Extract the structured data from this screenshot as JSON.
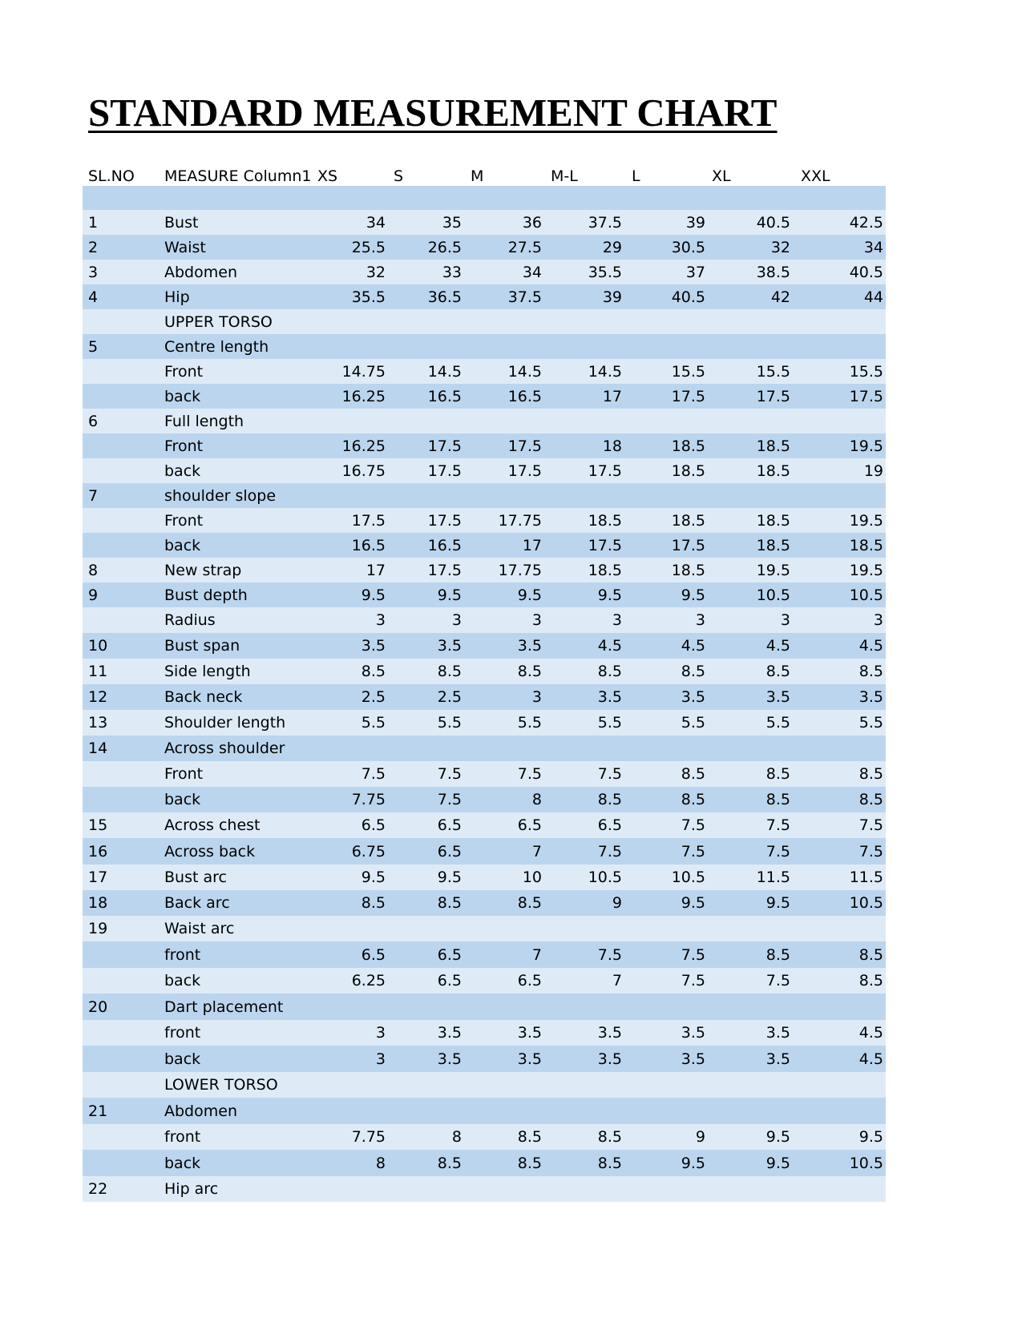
{
  "title": "STANDARD MEASUREMENT CHART",
  "header": {
    "slno": "SL.NO",
    "measure": "MEASURE Column1",
    "sizes": [
      "XS",
      "S",
      "M",
      "M-L",
      "L",
      "XL",
      "XXL"
    ]
  },
  "rows": [
    {
      "sl": "",
      "m": "",
      "v": [
        "",
        "",
        "",
        "",
        "",
        "",
        ""
      ]
    },
    {
      "sl": "1",
      "m": "Bust",
      "v": [
        "34",
        "35",
        "36",
        "37.5",
        "39",
        "40.5",
        "42.5"
      ]
    },
    {
      "sl": "2",
      "m": "Waist",
      "v": [
        "25.5",
        "26.5",
        "27.5",
        "29",
        "30.5",
        "32",
        "34"
      ]
    },
    {
      "sl": "3",
      "m": "Abdomen",
      "v": [
        "32",
        "33",
        "34",
        "35.5",
        "37",
        "38.5",
        "40.5"
      ]
    },
    {
      "sl": "4",
      "m": "Hip",
      "v": [
        "35.5",
        "36.5",
        "37.5",
        "39",
        "40.5",
        "42",
        "44"
      ]
    },
    {
      "sl": "",
      "m": "UPPER TORSO",
      "v": [
        "",
        "",
        "",
        "",
        "",
        "",
        ""
      ]
    },
    {
      "sl": "5",
      "m": "Centre length",
      "v": [
        "",
        "",
        "",
        "",
        "",
        "",
        ""
      ]
    },
    {
      "sl": "",
      "m": "Front",
      "v": [
        "14.75",
        "14.5",
        "14.5",
        "14.5",
        "15.5",
        "15.5",
        "15.5"
      ]
    },
    {
      "sl": "",
      "m": "back",
      "v": [
        "16.25",
        "16.5",
        "16.5",
        "17",
        "17.5",
        "17.5",
        "17.5"
      ]
    },
    {
      "sl": "6",
      "m": "Full length",
      "v": [
        "",
        "",
        "",
        "",
        "",
        "",
        ""
      ]
    },
    {
      "sl": "",
      "m": "Front",
      "v": [
        "16.25",
        "17.5",
        "17.5",
        "18",
        "18.5",
        "18.5",
        "19.5"
      ]
    },
    {
      "sl": "",
      "m": "back",
      "v": [
        "16.75",
        "17.5",
        "17.5",
        "17.5",
        "18.5",
        "18.5",
        "19"
      ]
    },
    {
      "sl": "7",
      "m": "shoulder slope",
      "v": [
        "",
        "",
        "",
        "",
        "",
        "",
        ""
      ]
    },
    {
      "sl": "",
      "m": "Front",
      "v": [
        "17.5",
        "17.5",
        "17.75",
        "18.5",
        "18.5",
        "18.5",
        "19.5"
      ]
    },
    {
      "sl": "",
      "m": "back",
      "v": [
        "16.5",
        "16.5",
        "17",
        "17.5",
        "17.5",
        "18.5",
        "18.5"
      ]
    },
    {
      "sl": "8",
      "m": "New strap",
      "v": [
        "17",
        "17.5",
        "17.75",
        "18.5",
        "18.5",
        "19.5",
        "19.5"
      ]
    },
    {
      "sl": "9",
      "m": "Bust depth",
      "v": [
        "9.5",
        "9.5",
        "9.5",
        "9.5",
        "9.5",
        "10.5",
        "10.5"
      ]
    },
    {
      "sl": "",
      "m": "Radius",
      "v": [
        "3",
        "3",
        "3",
        "3",
        "3",
        "3",
        "3"
      ]
    },
    {
      "sl": "10",
      "m": "Bust span",
      "v": [
        "3.5",
        "3.5",
        "3.5",
        "4.5",
        "4.5",
        "4.5",
        "4.5"
      ]
    },
    {
      "sl": "11",
      "m": "Side length",
      "v": [
        "8.5",
        "8.5",
        "8.5",
        "8.5",
        "8.5",
        "8.5",
        "8.5"
      ]
    },
    {
      "sl": "12",
      "m": "Back neck",
      "v": [
        "2.5",
        "2.5",
        "3",
        "3.5",
        "3.5",
        "3.5",
        "3.5"
      ]
    },
    {
      "sl": "13",
      "m": "Shoulder length",
      "v": [
        "5.5",
        "5.5",
        "5.5",
        "5.5",
        "5.5",
        "5.5",
        "5.5"
      ]
    },
    {
      "sl": "14",
      "m": "Across shoulder",
      "v": [
        "",
        "",
        "",
        "",
        "",
        "",
        ""
      ]
    },
    {
      "sl": "",
      "m": "Front",
      "v": [
        "7.5",
        "7.5",
        "7.5",
        "7.5",
        "8.5",
        "8.5",
        "8.5"
      ]
    },
    {
      "sl": "",
      "m": "back",
      "v": [
        "7.75",
        "7.5",
        "8",
        "8.5",
        "8.5",
        "8.5",
        "8.5"
      ]
    },
    {
      "sl": "15",
      "m": "Across chest",
      "v": [
        "6.5",
        "6.5",
        "6.5",
        "6.5",
        "7.5",
        "7.5",
        "7.5"
      ]
    },
    {
      "sl": "16",
      "m": "Across back",
      "v": [
        "6.75",
        "6.5",
        "7",
        "7.5",
        "7.5",
        "7.5",
        "7.5"
      ]
    },
    {
      "sl": "17",
      "m": "Bust arc",
      "v": [
        "9.5",
        "9.5",
        "10",
        "10.5",
        "10.5",
        "11.5",
        "11.5"
      ]
    },
    {
      "sl": "18",
      "m": "Back arc",
      "v": [
        "8.5",
        "8.5",
        "8.5",
        "9",
        "9.5",
        "9.5",
        "10.5"
      ]
    },
    {
      "sl": "19",
      "m": "Waist arc",
      "v": [
        "",
        "",
        "",
        "",
        "",
        "",
        ""
      ]
    },
    {
      "sl": "",
      "m": "front",
      "v": [
        "6.5",
        "6.5",
        "7",
        "7.5",
        "7.5",
        "8.5",
        "8.5"
      ]
    },
    {
      "sl": "",
      "m": "back",
      "v": [
        "6.25",
        "6.5",
        "6.5",
        "7",
        "7.5",
        "7.5",
        "8.5"
      ]
    },
    {
      "sl": "20",
      "m": "Dart placement",
      "v": [
        "",
        "",
        "",
        "",
        "",
        "",
        ""
      ]
    },
    {
      "sl": "",
      "m": "front",
      "v": [
        "3",
        "3.5",
        "3.5",
        "3.5",
        "3.5",
        "3.5",
        "4.5"
      ]
    },
    {
      "sl": "",
      "m": "back",
      "v": [
        "3",
        "3.5",
        "3.5",
        "3.5",
        "3.5",
        "3.5",
        "4.5"
      ]
    },
    {
      "sl": "",
      "m": "LOWER TORSO",
      "v": [
        "",
        "",
        "",
        "",
        "",
        "",
        ""
      ]
    },
    {
      "sl": "21",
      "m": "Abdomen",
      "v": [
        "",
        "",
        "",
        "",
        "",
        "",
        ""
      ]
    },
    {
      "sl": "",
      "m": "front",
      "v": [
        "7.75",
        "8",
        "8.5",
        "8.5",
        "9",
        "9.5",
        "9.5"
      ]
    },
    {
      "sl": "",
      "m": "back",
      "v": [
        "8",
        "8.5",
        "8.5",
        "8.5",
        "9.5",
        "9.5",
        "10.5"
      ]
    },
    {
      "sl": "22",
      "m": "Hip arc",
      "v": [
        "",
        "",
        "",
        "",
        "",
        "",
        ""
      ]
    }
  ]
}
